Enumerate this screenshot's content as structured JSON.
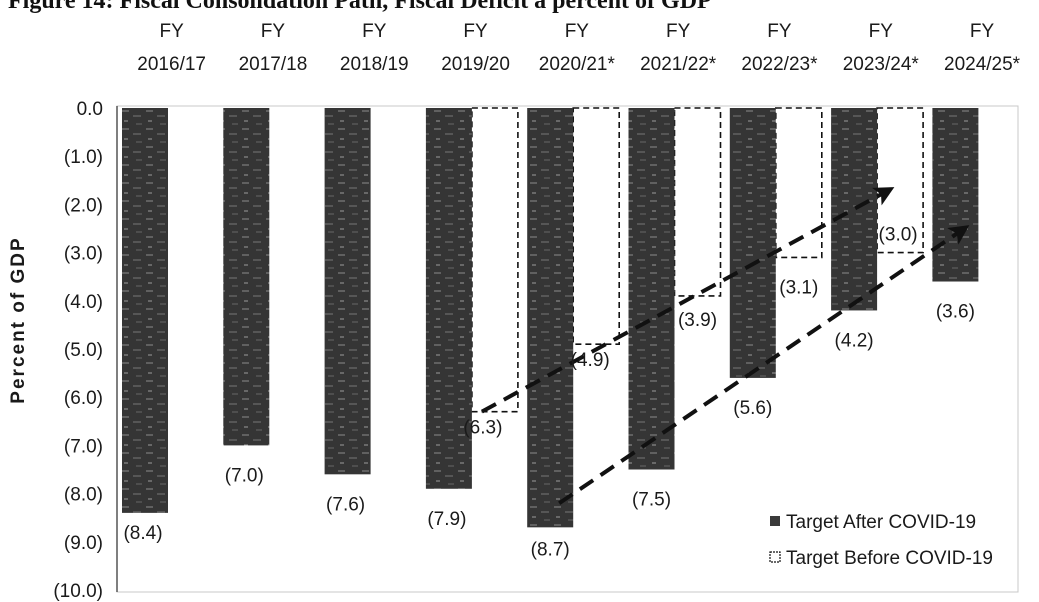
{
  "figure": {
    "title": "Figure 14: Fiscal Consolidation Path, Fiscal Deficit a percent of GDP"
  },
  "chart_data": {
    "type": "bar",
    "categories": [
      [
        "FY",
        "2016/17"
      ],
      [
        "FY",
        "2017/18"
      ],
      [
        "FY",
        "2018/19"
      ],
      [
        "FY",
        "2019/20"
      ],
      [
        "FY",
        "2020/21*"
      ],
      [
        "FY",
        "2021/22*"
      ],
      [
        "FY",
        "2022/23*"
      ],
      [
        "FY",
        "2023/24*"
      ],
      [
        "FY",
        "2024/25*"
      ]
    ],
    "ylabel": "Percent of GDP",
    "ylim": [
      0,
      10
    ],
    "y_inverted": true,
    "yticks": [
      0,
      1,
      2,
      3,
      4,
      5,
      6,
      7,
      8,
      9,
      10
    ],
    "ytick_labels": [
      "0.0",
      "(1.0)",
      "(2.0)",
      "(3.0)",
      "(4.0)",
      "(5.0)",
      "(6.0)",
      "(7.0)",
      "(8.0)",
      "(9.0)",
      "(10.0)"
    ],
    "series": [
      {
        "name": "Target After COVID-19",
        "style": "solid",
        "color": "#3a3a3a",
        "values": [
          8.4,
          7.0,
          7.6,
          7.9,
          8.7,
          7.5,
          5.6,
          4.2,
          3.6
        ],
        "labels": [
          "(8.4)",
          "(7.0)",
          "(7.6)",
          "(7.9)",
          "(8.7)",
          "(7.5)",
          "(5.6)",
          "(4.2)",
          "(3.6)"
        ]
      },
      {
        "name": "Target Before COVID-19",
        "style": "dashed-outline",
        "color": "#111111",
        "values": [
          null,
          null,
          null,
          6.3,
          4.9,
          3.9,
          3.1,
          3.0,
          null
        ],
        "labels": [
          null,
          null,
          null,
          "(6.3)",
          "(4.9)",
          "(3.9)",
          "(3.1)",
          "(3.0)",
          null
        ]
      }
    ],
    "trend_arrows": [
      {
        "from": {
          "category_index": 3,
          "value": 6.3
        },
        "to": {
          "category_index": 7,
          "value": 1.7
        }
      },
      {
        "from": {
          "category_index": 4,
          "value": 8.2
        },
        "to": {
          "category_index": 8,
          "value": 2.5
        }
      }
    ],
    "legend": {
      "position": "bottom-right",
      "entries": [
        "Target After COVID-19",
        "Target Before COVID-19"
      ]
    },
    "grid": false
  }
}
